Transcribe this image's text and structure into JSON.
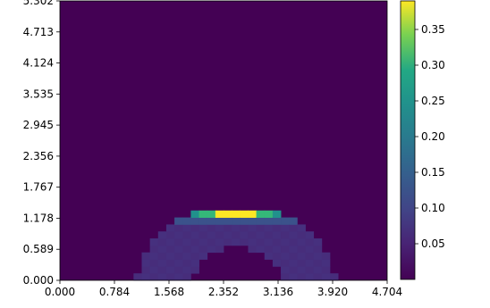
{
  "chart_data": {
    "type": "heatmap",
    "title": "",
    "xlabel": "",
    "ylabel": "",
    "xlim": [
      0.0,
      4.704
    ],
    "ylim": [
      0.0,
      5.302
    ],
    "x_ticks": [
      "0.000",
      "0.784",
      "1.568",
      "2.352",
      "3.136",
      "3.920",
      "4.704"
    ],
    "y_ticks": [
      "0.000",
      "0.589",
      "1.178",
      "1.767",
      "2.356",
      "2.945",
      "3.535",
      "4.124",
      "4.713",
      "5.302"
    ],
    "colorbar": {
      "colormap": "viridis",
      "vmin": 0.0,
      "vmax": 0.39,
      "ticks": [
        "0.05",
        "0.10",
        "0.15",
        "0.20",
        "0.25",
        "0.30",
        "0.35"
      ]
    },
    "grid": false,
    "description_of_values": "Background ~0.0; semicircular ring near bottom center with values ~0.03-0.06; peak ~0.39 at top of ring (x 2.2-2.9, y ~1.2)"
  },
  "colors": {
    "low": "#440154",
    "ring_dim": "#46307e",
    "ring_mid": "#3b528b",
    "ring_teal": "#21918c",
    "ring_green": "#35b779",
    "peak": "#fde725"
  }
}
